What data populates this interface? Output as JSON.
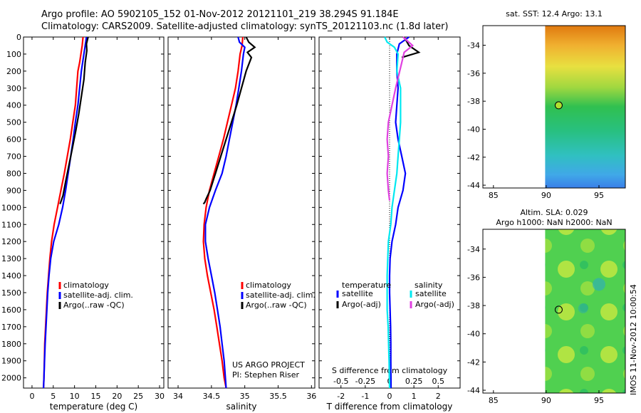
{
  "figure": {
    "title_line1": "Argo profile: AO 5902105_152 01-Nov-2012 20121101_219 38.294S 91.184E",
    "title_line2": "Climatology: CARS2009. Satellite-adjusted climatology: synTS_20121103.nc (1.8d later)",
    "credit_project": "US ARGO PROJECT",
    "credit_pi": "PI: Stephen Riser",
    "timestamp": "IMOS 11-Nov-2012 10:00:54"
  },
  "colors": {
    "climatology": "#ff0000",
    "satellite": "#0000ff",
    "argo": "#000000",
    "satellite_s": "#00e8f0",
    "argo_s": "#e040e0"
  },
  "chart_data": [
    {
      "type": "line",
      "xlabel": "temperature (deg C)",
      "xlim": [
        -2,
        31
      ],
      "xticks": [
        0,
        5,
        10,
        15,
        20,
        25,
        30
      ],
      "ylim": [
        2060,
        0
      ],
      "yticks": [
        0,
        100,
        200,
        300,
        400,
        500,
        600,
        700,
        800,
        900,
        1000,
        1100,
        1200,
        1300,
        1400,
        1500,
        1600,
        1700,
        1800,
        1900,
        2000
      ],
      "legend": [
        "climatology",
        "satellite-adj. clim.",
        "Argo(..raw -QC)"
      ],
      "series": [
        {
          "name": "climatology",
          "color": "#ff0000",
          "x": [
            12.0,
            11.8,
            11.5,
            11.2,
            10.8,
            10.5,
            10.2,
            9.6,
            9.0,
            8.3,
            7.6,
            6.8,
            6.0,
            5.2,
            4.6,
            4.2,
            3.9,
            3.6,
            3.4,
            3.2,
            3.0,
            2.9,
            2.8,
            2.7
          ],
          "y": [
            0,
            50,
            100,
            150,
            200,
            300,
            400,
            500,
            600,
            700,
            800,
            900,
            1000,
            1100,
            1200,
            1300,
            1400,
            1500,
            1600,
            1700,
            1800,
            1900,
            2000,
            2060
          ]
        },
        {
          "name": "satellite-adj. clim.",
          "color": "#0000ff",
          "x": [
            12.8,
            12.5,
            12.2,
            11.9,
            11.6,
            11.2,
            10.8,
            10.2,
            9.7,
            9.1,
            8.5,
            7.9,
            7.2,
            6.3,
            5.1,
            4.4,
            4.0,
            3.7,
            3.5,
            3.3,
            3.1,
            2.95,
            2.8,
            2.7
          ],
          "y": [
            0,
            50,
            100,
            150,
            200,
            300,
            400,
            500,
            600,
            700,
            800,
            900,
            1000,
            1100,
            1200,
            1300,
            1400,
            1500,
            1600,
            1700,
            1800,
            1900,
            2000,
            2060
          ]
        },
        {
          "name": "Argo(..raw -QC)",
          "color": "#000000",
          "x": [
            13.2,
            12.8,
            12.9,
            12.5,
            12.2,
            11.6,
            11.0,
            10.3,
            9.5,
            8.7,
            7.9,
            7.3,
            6.6
          ],
          "y": [
            0,
            40,
            80,
            150,
            250,
            350,
            450,
            550,
            650,
            750,
            850,
            930,
            980
          ]
        }
      ]
    },
    {
      "type": "line",
      "xlabel": "salinity",
      "xlim": [
        33.85,
        36.05
      ],
      "xticks": [
        34,
        34.5,
        35,
        35.5,
        36
      ],
      "ylim": [
        2060,
        0
      ],
      "legend": [
        "climatology",
        "satellite-adj. clim.",
        "Argo(..raw -QC)"
      ],
      "series": [
        {
          "name": "climatology",
          "color": "#ff0000",
          "x": [
            34.97,
            34.96,
            34.93,
            34.9,
            34.86,
            34.8,
            34.74,
            34.68,
            34.61,
            34.54,
            34.47,
            34.42,
            34.39,
            34.38,
            34.4,
            34.44,
            34.49,
            34.54,
            34.58,
            34.62,
            34.66,
            34.69,
            34.72
          ],
          "y": [
            0,
            50,
            100,
            200,
            300,
            400,
            500,
            600,
            700,
            800,
            900,
            1000,
            1100,
            1200,
            1300,
            1400,
            1500,
            1600,
            1700,
            1800,
            1900,
            2000,
            2060
          ]
        },
        {
          "name": "satellite-adj. clim.",
          "color": "#0000ff",
          "x": [
            34.9,
            34.92,
            35.0,
            34.98,
            34.95,
            34.91,
            34.87,
            34.82,
            34.77,
            34.72,
            34.66,
            34.56,
            34.47,
            34.41,
            34.41,
            34.45,
            34.5,
            34.55,
            34.59,
            34.63,
            34.66,
            34.69,
            34.72
          ],
          "y": [
            0,
            30,
            60,
            100,
            200,
            300,
            400,
            500,
            600,
            700,
            800,
            900,
            1000,
            1100,
            1200,
            1300,
            1400,
            1500,
            1600,
            1700,
            1800,
            1900,
            2060
          ]
        },
        {
          "name": "Argo(..raw -QC)",
          "color": "#000000",
          "x": [
            35.02,
            35.06,
            35.15,
            35.04,
            35.1,
            35.02,
            34.95,
            34.88,
            34.8,
            34.72,
            34.64,
            34.56,
            34.48,
            34.42,
            34.4,
            34.38
          ],
          "y": [
            0,
            30,
            60,
            90,
            120,
            200,
            300,
            400,
            500,
            600,
            700,
            800,
            900,
            950,
            970,
            980
          ]
        }
      ]
    },
    {
      "type": "line",
      "xlabel": "T difference from climatology",
      "xlabel_top": "S difference from climatology",
      "xlim": [
        -2.9,
        2.9
      ],
      "xticks": [
        -2,
        -1,
        0,
        1,
        2
      ],
      "xticks_top": [
        -0.5,
        -0.25,
        0,
        0.25,
        0.5
      ],
      "xticks_top_labels": [
        "-0.5",
        "-0.25",
        "0",
        "0.25",
        "0.5"
      ],
      "ylim": [
        2060,
        0
      ],
      "legend_left_title": "temperature",
      "legend_right_title": "salinity",
      "legend": [
        "satellite",
        "Argo(-adj)",
        "satellite",
        "Argo(-adj)"
      ],
      "series": [
        {
          "name": "satellite",
          "color": "#0000ff",
          "x": [
            0.8,
            0.4,
            0.3,
            0.3,
            0.35,
            0.3,
            0.25,
            0.35,
            0.5,
            0.65,
            0.55,
            0.35,
            0.25,
            0.1,
            0.02,
            0.0,
            0.0,
            0.02,
            0.04,
            0.05,
            0.05,
            0.06
          ],
          "y": [
            0,
            40,
            100,
            200,
            300,
            400,
            500,
            600,
            700,
            800,
            900,
            1000,
            1100,
            1200,
            1300,
            1400,
            1500,
            1600,
            1700,
            1800,
            1900,
            2060
          ]
        },
        {
          "name": "Argo(-adj)",
          "color": "#000000",
          "x": [
            0.6,
            0.8,
            1.2,
            0.5
          ],
          "y": [
            0,
            50,
            90,
            120
          ]
        },
        {
          "name": "satellite",
          "color": "#00e8f0",
          "x": [
            -0.2,
            -0.1,
            0.2,
            0.35,
            0.3,
            0.45,
            0.45,
            0.45,
            0.4,
            0.35,
            0.3,
            0.2,
            0.1,
            0.05,
            -0.05,
            -0.1,
            -0.1,
            -0.06,
            -0.04,
            -0.02,
            -0.01,
            0.0
          ],
          "y": [
            0,
            30,
            60,
            100,
            200,
            300,
            400,
            500,
            600,
            700,
            800,
            900,
            1000,
            1100,
            1200,
            1400,
            1600,
            1700,
            1800,
            1900,
            2000,
            2060
          ]
        },
        {
          "name": "Argo(-adj)",
          "color": "#e040e0",
          "x": [
            0.55,
            0.95,
            0.6,
            0.5,
            0.25,
            0.1,
            -0.05,
            -0.1,
            -0.05,
            -0.1,
            -0.05,
            0.0
          ],
          "y": [
            0,
            50,
            90,
            150,
            300,
            400,
            500,
            600,
            700,
            800,
            900,
            960
          ]
        }
      ]
    },
    {
      "type": "heatmap",
      "title": "sat. SST: 12.4 Argo: 13.1",
      "xlim": [
        84,
        97.5
      ],
      "ylim": [
        -44.2,
        -32.6
      ],
      "xticks": [
        85,
        90,
        95
      ],
      "yticks": [
        -34,
        -36,
        -38,
        -40,
        -42,
        -44
      ],
      "profile_marker": {
        "lon": 91.184,
        "lat": -38.294
      }
    },
    {
      "type": "heatmap",
      "title_line1": "Altim. SLA: 0.029",
      "title_line2": "Argo h1000: NaN h2000: NaN",
      "xlim": [
        84,
        97.5
      ],
      "ylim": [
        -44.2,
        -32.6
      ],
      "xticks": [
        85,
        90,
        95
      ],
      "yticks": [
        -34,
        -36,
        -38,
        -40,
        -42,
        -44
      ],
      "profile_marker": {
        "lon": 91.184,
        "lat": -38.294
      }
    }
  ]
}
